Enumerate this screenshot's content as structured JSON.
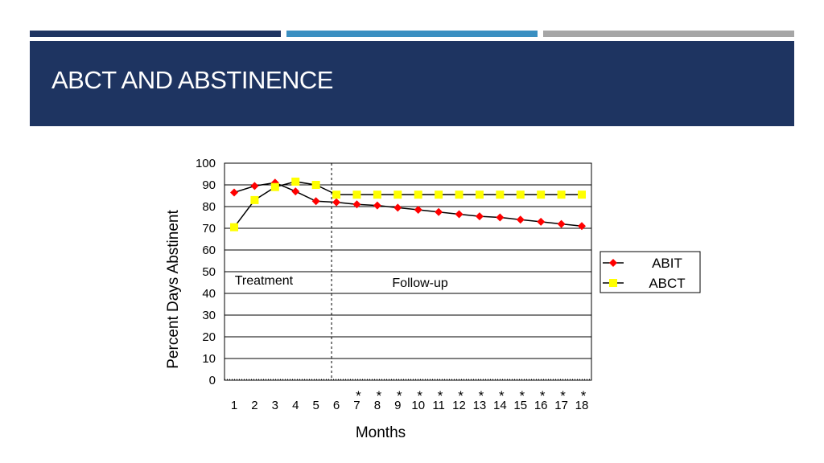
{
  "slide": {
    "title": "ABCT AND ABSTINENCE",
    "colors": {
      "title_band": "#1e3461",
      "accent_1": "#1e3461",
      "accent_2": "#3a8fc1",
      "accent_3": "#a6a6a6"
    }
  },
  "chart_data": {
    "type": "line",
    "title": "",
    "xlabel": "Months",
    "ylabel": "Percent Days Abstinent",
    "x": [
      1,
      2,
      3,
      4,
      5,
      6,
      7,
      8,
      9,
      10,
      11,
      12,
      13,
      14,
      15,
      16,
      17,
      18
    ],
    "ylim": [
      0,
      100
    ],
    "yticks": [
      0,
      10,
      20,
      30,
      40,
      50,
      60,
      70,
      80,
      90,
      100
    ],
    "grid": "horizontal",
    "legend_position": "right",
    "series": [
      {
        "name": "ABIT",
        "color": "#ff0000",
        "marker": "diamond",
        "values": [
          86.5,
          89.5,
          91,
          87,
          82.5,
          82,
          81,
          80.5,
          79.5,
          78.5,
          77.5,
          76.5,
          75.5,
          75,
          74,
          73,
          72,
          71
        ]
      },
      {
        "name": "ABCT",
        "color": "#ffff00",
        "marker": "square",
        "values": [
          70.5,
          83,
          89,
          91.5,
          90,
          85.5,
          85.5,
          85.5,
          85.5,
          85.5,
          85.5,
          85.5,
          85.5,
          85.5,
          85.5,
          85.5,
          85.5,
          85.5
        ]
      }
    ],
    "divider_after_month": 6,
    "annotations": [
      {
        "text": "Treatment",
        "x": 2.8,
        "y": 44
      },
      {
        "text": "Follow-up",
        "x": 10.5,
        "y": 43
      }
    ],
    "significance_marker": "*",
    "significant_months": [
      7,
      8,
      9,
      10,
      11,
      12,
      13,
      14,
      15,
      16,
      17,
      18
    ]
  }
}
